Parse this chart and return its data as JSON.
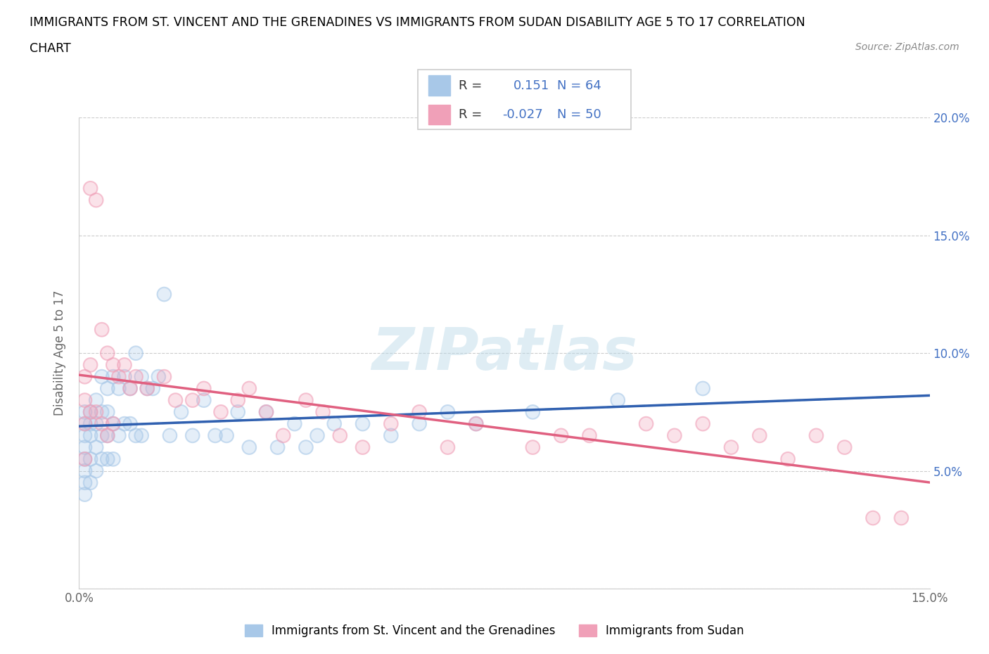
{
  "title_line1": "IMMIGRANTS FROM ST. VINCENT AND THE GRENADINES VS IMMIGRANTS FROM SUDAN DISABILITY AGE 5 TO 17 CORRELATION",
  "title_line2": "CHART",
  "source": "Source: ZipAtlas.com",
  "ylabel": "Disability Age 5 to 17",
  "xmin": 0.0,
  "xmax": 0.15,
  "ymin": 0.0,
  "ymax": 0.2,
  "yticks": [
    0.0,
    0.05,
    0.1,
    0.15,
    0.2
  ],
  "ytick_labels": [
    "",
    "5.0%",
    "10.0%",
    "15.0%",
    "20.0%"
  ],
  "ytick_labels_right": [
    "",
    "5.0%",
    "10.0%",
    "15.0%",
    "20.0%"
  ],
  "blue_R": 0.151,
  "blue_N": 64,
  "pink_R": -0.027,
  "pink_N": 50,
  "blue_color": "#a8c8e8",
  "pink_color": "#f0a0b8",
  "blue_line_color": "#3060b0",
  "pink_line_color": "#e06080",
  "dashed_line_color": "#90c8d8",
  "watermark": "ZIPatlas",
  "legend_label_blue": "Immigrants from St. Vincent and the Grenadines",
  "legend_label_pink": "Immigrants from Sudan",
  "blue_scatter_x": [
    0.001,
    0.001,
    0.001,
    0.001,
    0.001,
    0.001,
    0.001,
    0.001,
    0.002,
    0.002,
    0.002,
    0.002,
    0.002,
    0.003,
    0.003,
    0.003,
    0.003,
    0.004,
    0.004,
    0.004,
    0.004,
    0.005,
    0.005,
    0.005,
    0.005,
    0.006,
    0.006,
    0.006,
    0.007,
    0.007,
    0.008,
    0.008,
    0.009,
    0.009,
    0.01,
    0.01,
    0.011,
    0.011,
    0.012,
    0.013,
    0.014,
    0.015,
    0.016,
    0.018,
    0.02,
    0.022,
    0.024,
    0.026,
    0.028,
    0.03,
    0.033,
    0.035,
    0.038,
    0.04,
    0.042,
    0.045,
    0.05,
    0.055,
    0.06,
    0.065,
    0.07,
    0.08,
    0.095,
    0.11
  ],
  "blue_scatter_y": [
    0.07,
    0.075,
    0.065,
    0.06,
    0.055,
    0.05,
    0.045,
    0.04,
    0.075,
    0.07,
    0.065,
    0.055,
    0.045,
    0.08,
    0.07,
    0.06,
    0.05,
    0.09,
    0.075,
    0.065,
    0.055,
    0.085,
    0.075,
    0.065,
    0.055,
    0.09,
    0.07,
    0.055,
    0.085,
    0.065,
    0.09,
    0.07,
    0.085,
    0.07,
    0.1,
    0.065,
    0.09,
    0.065,
    0.085,
    0.085,
    0.09,
    0.125,
    0.065,
    0.075,
    0.065,
    0.08,
    0.065,
    0.065,
    0.075,
    0.06,
    0.075,
    0.06,
    0.07,
    0.06,
    0.065,
    0.07,
    0.07,
    0.065,
    0.07,
    0.075,
    0.07,
    0.075,
    0.08,
    0.085
  ],
  "pink_scatter_x": [
    0.001,
    0.001,
    0.001,
    0.001,
    0.002,
    0.002,
    0.002,
    0.003,
    0.003,
    0.004,
    0.004,
    0.005,
    0.005,
    0.006,
    0.006,
    0.007,
    0.008,
    0.009,
    0.01,
    0.012,
    0.015,
    0.017,
    0.02,
    0.022,
    0.025,
    0.028,
    0.03,
    0.033,
    0.036,
    0.04,
    0.043,
    0.046,
    0.05,
    0.055,
    0.06,
    0.065,
    0.07,
    0.08,
    0.085,
    0.09,
    0.1,
    0.105,
    0.11,
    0.115,
    0.12,
    0.125,
    0.13,
    0.135,
    0.14,
    0.145
  ],
  "pink_scatter_y": [
    0.09,
    0.08,
    0.07,
    0.055,
    0.17,
    0.095,
    0.075,
    0.165,
    0.075,
    0.11,
    0.07,
    0.1,
    0.065,
    0.095,
    0.07,
    0.09,
    0.095,
    0.085,
    0.09,
    0.085,
    0.09,
    0.08,
    0.08,
    0.085,
    0.075,
    0.08,
    0.085,
    0.075,
    0.065,
    0.08,
    0.075,
    0.065,
    0.06,
    0.07,
    0.075,
    0.06,
    0.07,
    0.06,
    0.065,
    0.065,
    0.07,
    0.065,
    0.07,
    0.06,
    0.065,
    0.055,
    0.065,
    0.06,
    0.03,
    0.03
  ]
}
